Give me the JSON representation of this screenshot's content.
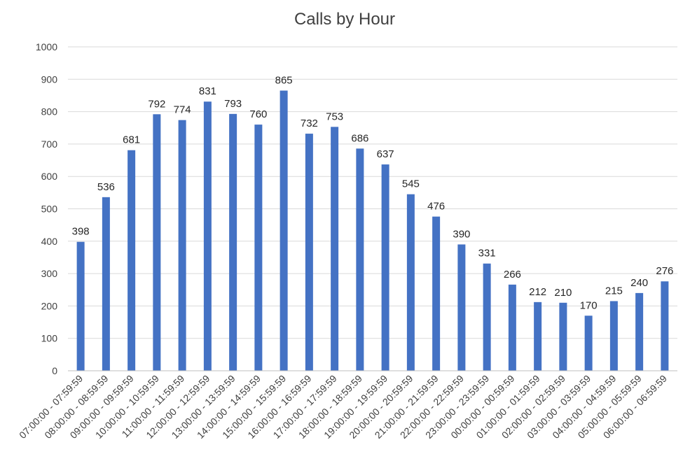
{
  "chart_data": {
    "type": "bar",
    "title": "Calls by Hour",
    "xlabel": "",
    "ylabel": "",
    "ylim": [
      0,
      1000
    ],
    "yticks": [
      0,
      100,
      200,
      300,
      400,
      500,
      600,
      700,
      800,
      900,
      1000
    ],
    "grid": true,
    "legend": "none",
    "bar_color": "#4472c4",
    "categories": [
      "07:00:00 - 07:59:59",
      "08:00:00 - 08:59:59",
      "09:00:00 - 09:59:59",
      "10:00:00 - 10:59:59",
      "11:00:00 - 11:59:59",
      "12:00:00 - 12:59:59",
      "13:00:00 - 13:59:59",
      "14:00:00 - 14:59:59",
      "15:00:00 - 15:59:59",
      "16:00:00 - 16:59:59",
      "17:00:00 - 17:59:59",
      "18:00:00 - 18:59:59",
      "19:00:00 - 19:59:59",
      "20:00:00 - 20:59:59",
      "21:00:00 - 21:59:59",
      "22:00:00 - 22:59:59",
      "23:00:00 - 23:59:59",
      "00:00:00 - 00:59:59",
      "01:00:00 - 01:59:59",
      "02:00:00 - 02:59:59",
      "03:00:00 - 03:59:59",
      "04:00:00 - 04:59:59",
      "05:00:00 - 05:59:59",
      "06:00:00 - 06:59:59"
    ],
    "values": [
      398,
      536,
      681,
      792,
      774,
      831,
      793,
      760,
      865,
      732,
      753,
      686,
      637,
      545,
      476,
      390,
      331,
      266,
      212,
      210,
      170,
      215,
      240,
      276
    ]
  }
}
